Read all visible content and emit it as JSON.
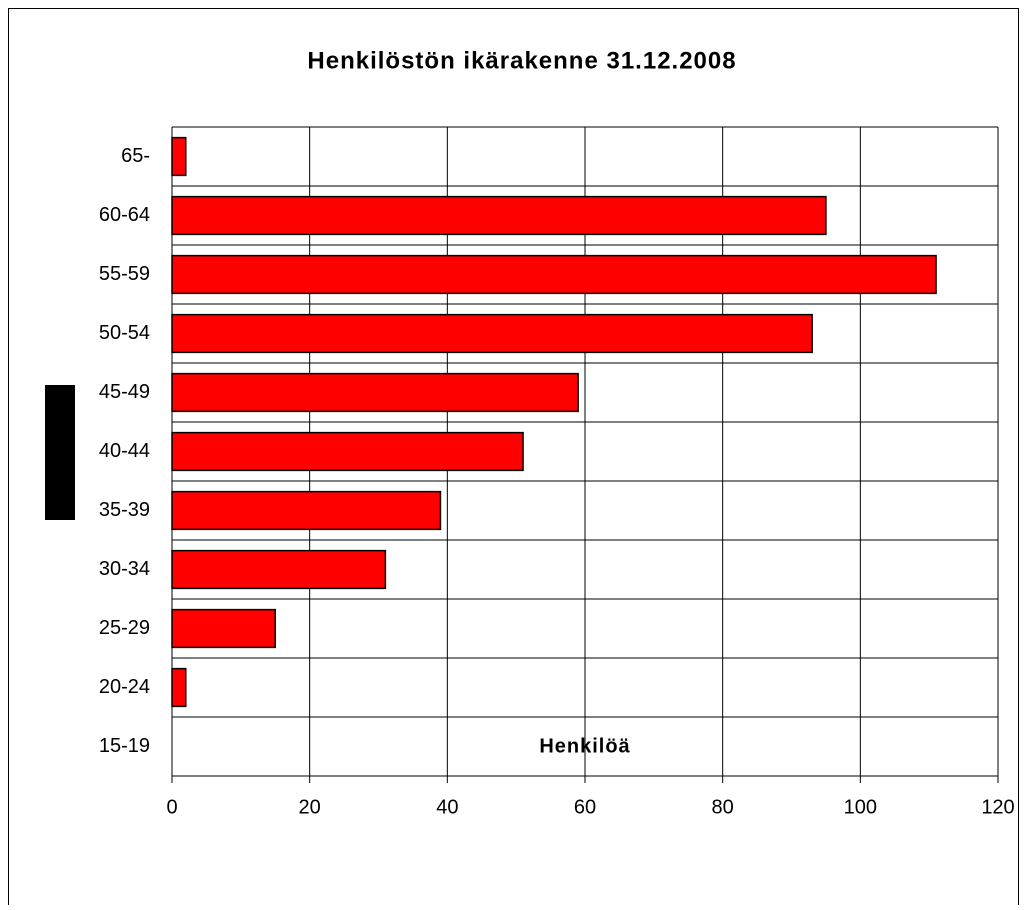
{
  "chart_data": {
    "type": "barh",
    "title": "Henkilöstön ikärakenne 31.12.2008",
    "xlabel": "Henkilöä",
    "categories": [
      "65-",
      "60-64",
      "55-59",
      "50-54",
      "45-49",
      "40-44",
      "35-39",
      "30-34",
      "25-29",
      "20-24",
      "15-19"
    ],
    "values": [
      2,
      95,
      111,
      93,
      59,
      51,
      39,
      31,
      15,
      2,
      0
    ],
    "color": "#ff0000",
    "xlim": [
      0,
      120
    ],
    "xticks": [
      0,
      20,
      40,
      60,
      80,
      100,
      120
    ],
    "grid": true
  }
}
